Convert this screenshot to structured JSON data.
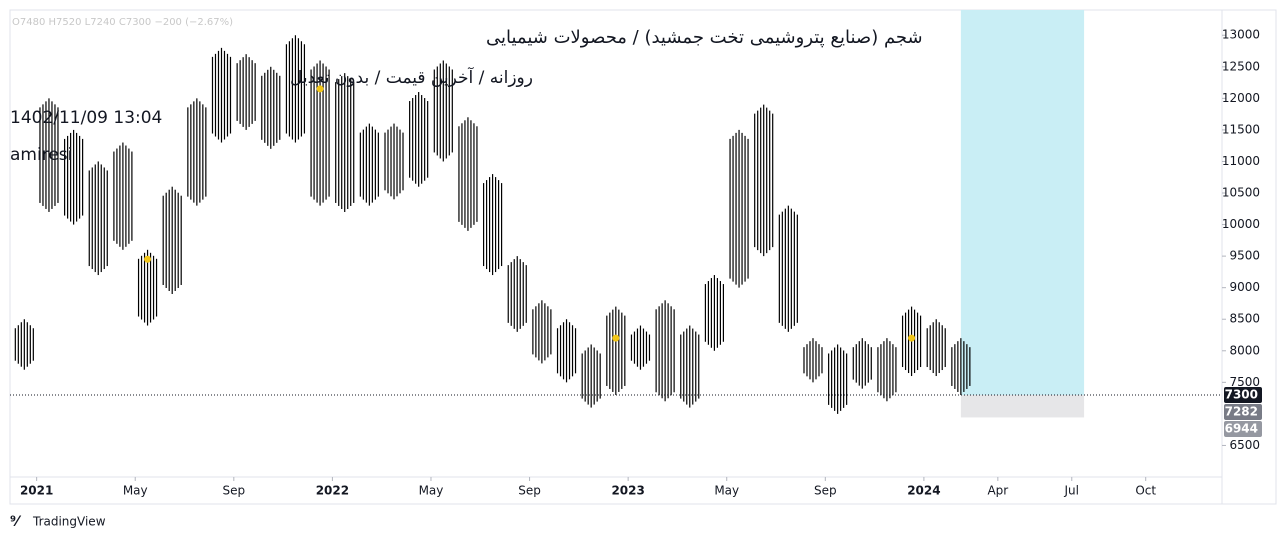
{
  "chart_data": {
    "type": "range-bar",
    "header": "O7480 H7520 L7240 C7300 −200 (−2.67%)",
    "title": "شجم (صنایع پتروشیمی تخت جمشید) / محصولات شیمیایی",
    "subtitle": "روزانه / آخرین قیمت / بدون تعدیل",
    "timestamp": "1402/11/09 13:04",
    "author": "amiresi",
    "brand": "TradingView",
    "color": "#000000",
    "x": [
      "2020-12",
      "2021-01",
      "2021-02",
      "2021-03",
      "2021-04",
      "2021-05",
      "2021-06",
      "2021-07",
      "2021-08",
      "2021-09",
      "2021-10",
      "2021-11",
      "2021-12",
      "2022-01",
      "2022-02",
      "2022-03",
      "2022-04",
      "2022-05",
      "2022-06",
      "2022-07",
      "2022-08",
      "2022-09",
      "2022-10",
      "2022-11",
      "2022-12",
      "2023-01",
      "2023-02",
      "2023-03",
      "2023-04",
      "2023-05",
      "2023-06",
      "2023-07",
      "2023-08",
      "2023-09",
      "2023-10",
      "2023-11",
      "2023-12",
      "2024-01",
      "2024-02"
    ],
    "series": [
      {
        "name": "High",
        "values": [
          8500,
          12000,
          11500,
          11000,
          11300,
          9600,
          10600,
          12000,
          12800,
          12700,
          12500,
          13000,
          12600,
          12400,
          11600,
          11600,
          12100,
          12600,
          11700,
          10800,
          9500,
          8800,
          8500,
          8100,
          8700,
          8400,
          8800,
          8400,
          9200,
          11500,
          11900,
          10300,
          8200,
          8100,
          8200,
          8200,
          8700,
          8500,
          8200
        ]
      },
      {
        "name": "Low",
        "values": [
          7700,
          10200,
          10000,
          9200,
          9600,
          8400,
          8900,
          10300,
          11300,
          11500,
          11200,
          11300,
          10300,
          10200,
          10300,
          10400,
          10600,
          11000,
          9900,
          9200,
          8300,
          7800,
          7500,
          7100,
          7300,
          7700,
          7200,
          7100,
          8000,
          9000,
          9500,
          8300,
          7500,
          7000,
          7400,
          7200,
          7600,
          7600,
          7300
        ]
      }
    ],
    "events": {
      "color": "#f2c618",
      "x": [
        "2021-05",
        "2021-12",
        "2022-12",
        "2023-12"
      ],
      "values": [
        9450,
        12150,
        8200,
        8200
      ]
    },
    "position": {
      "x": [
        "2024-02",
        "2024-07"
      ],
      "entry": 7300,
      "stop": 6944,
      "target_color": "#c9eef5",
      "stop_color": "#e6e6e8"
    },
    "price_labels": [
      {
        "value": 7300,
        "color": "#131722"
      },
      {
        "value": 7282,
        "color": "#787b86"
      },
      {
        "value": 6944,
        "color": "#9598a1"
      }
    ],
    "xlim": [
      "2020-12",
      "2024-12"
    ],
    "ylim": [
      6000,
      13400
    ],
    "yticks": [
      6500,
      7500,
      8000,
      8500,
      9000,
      9500,
      10000,
      10500,
      11000,
      11500,
      12000,
      12500,
      13000
    ],
    "xticks": [
      {
        "value": "2021-01",
        "label": "2021"
      },
      {
        "value": "2021-05",
        "label": "May"
      },
      {
        "value": "2021-09",
        "label": "Sep"
      },
      {
        "value": "2022-01",
        "label": "2022"
      },
      {
        "value": "2022-05",
        "label": "May"
      },
      {
        "value": "2022-09",
        "label": "Sep"
      },
      {
        "value": "2023-01",
        "label": "2023"
      },
      {
        "value": "2023-05",
        "label": "May"
      },
      {
        "value": "2023-09",
        "label": "Sep"
      },
      {
        "value": "2024-01",
        "label": "2024"
      },
      {
        "value": "2024-04",
        "label": "Apr"
      },
      {
        "value": "2024-07",
        "label": "Jul"
      },
      {
        "value": "2024-10",
        "label": "Oct"
      }
    ]
  }
}
